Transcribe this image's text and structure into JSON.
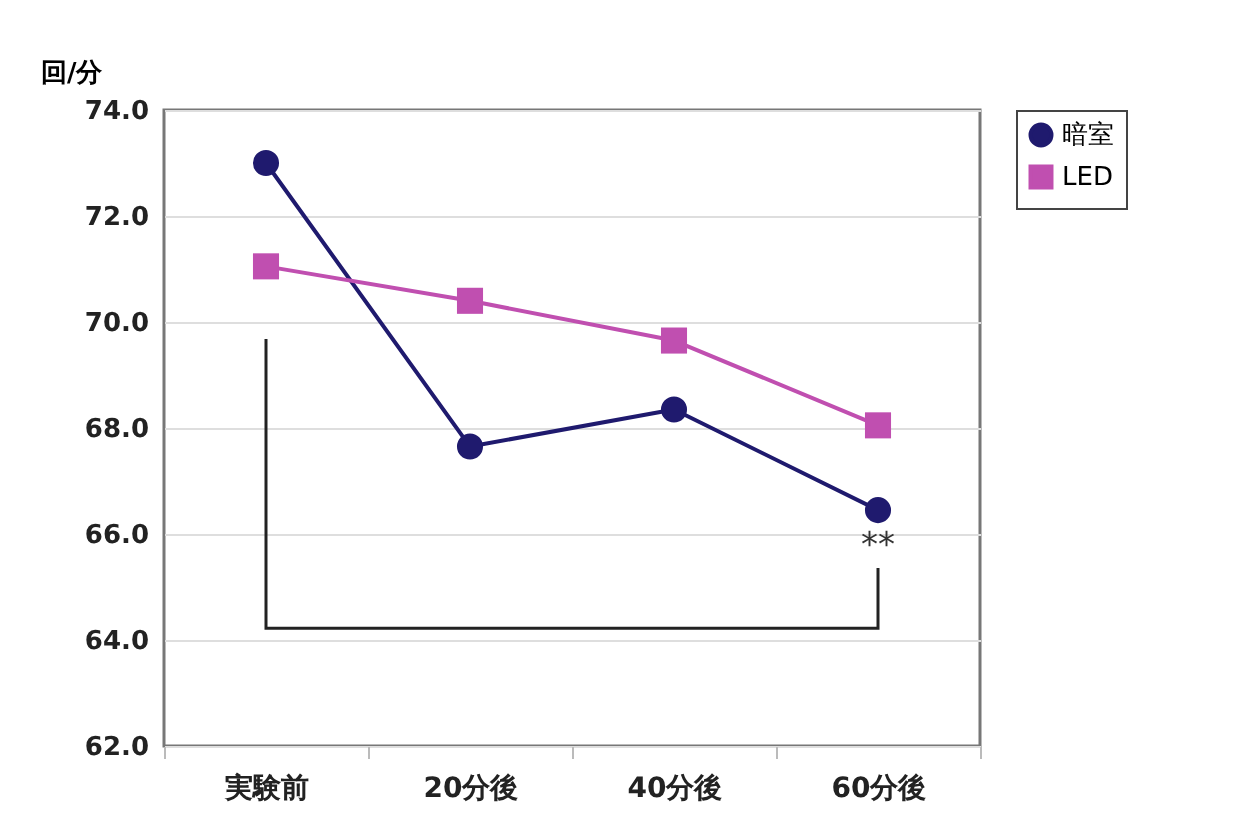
{
  "chart_data": {
    "type": "line",
    "ylabel": "回/分",
    "categories": [
      "実験前",
      "20分後",
      "40分後",
      "60分後"
    ],
    "series": [
      {
        "name": "暗室",
        "color": "#1f1a6e",
        "marker": "circle",
        "values": [
          73.0,
          67.65,
          68.35,
          66.45
        ]
      },
      {
        "name": "LED",
        "color": "#c04fb0",
        "marker": "square",
        "values": [
          71.05,
          70.4,
          69.65,
          68.05
        ]
      }
    ],
    "ylim": [
      62,
      74
    ],
    "yticks": [
      {
        "value": 62,
        "label": "62.0"
      },
      {
        "value": 64,
        "label": "64.0"
      },
      {
        "value": 66,
        "label": "66.0"
      },
      {
        "value": 68,
        "label": "68.0"
      },
      {
        "value": 70,
        "label": "70.0"
      },
      {
        "value": 72,
        "label": "72.0"
      },
      {
        "value": 74,
        "label": "74.0"
      }
    ],
    "grid": "y",
    "legend": "right",
    "annotations": [
      "**"
    ]
  }
}
